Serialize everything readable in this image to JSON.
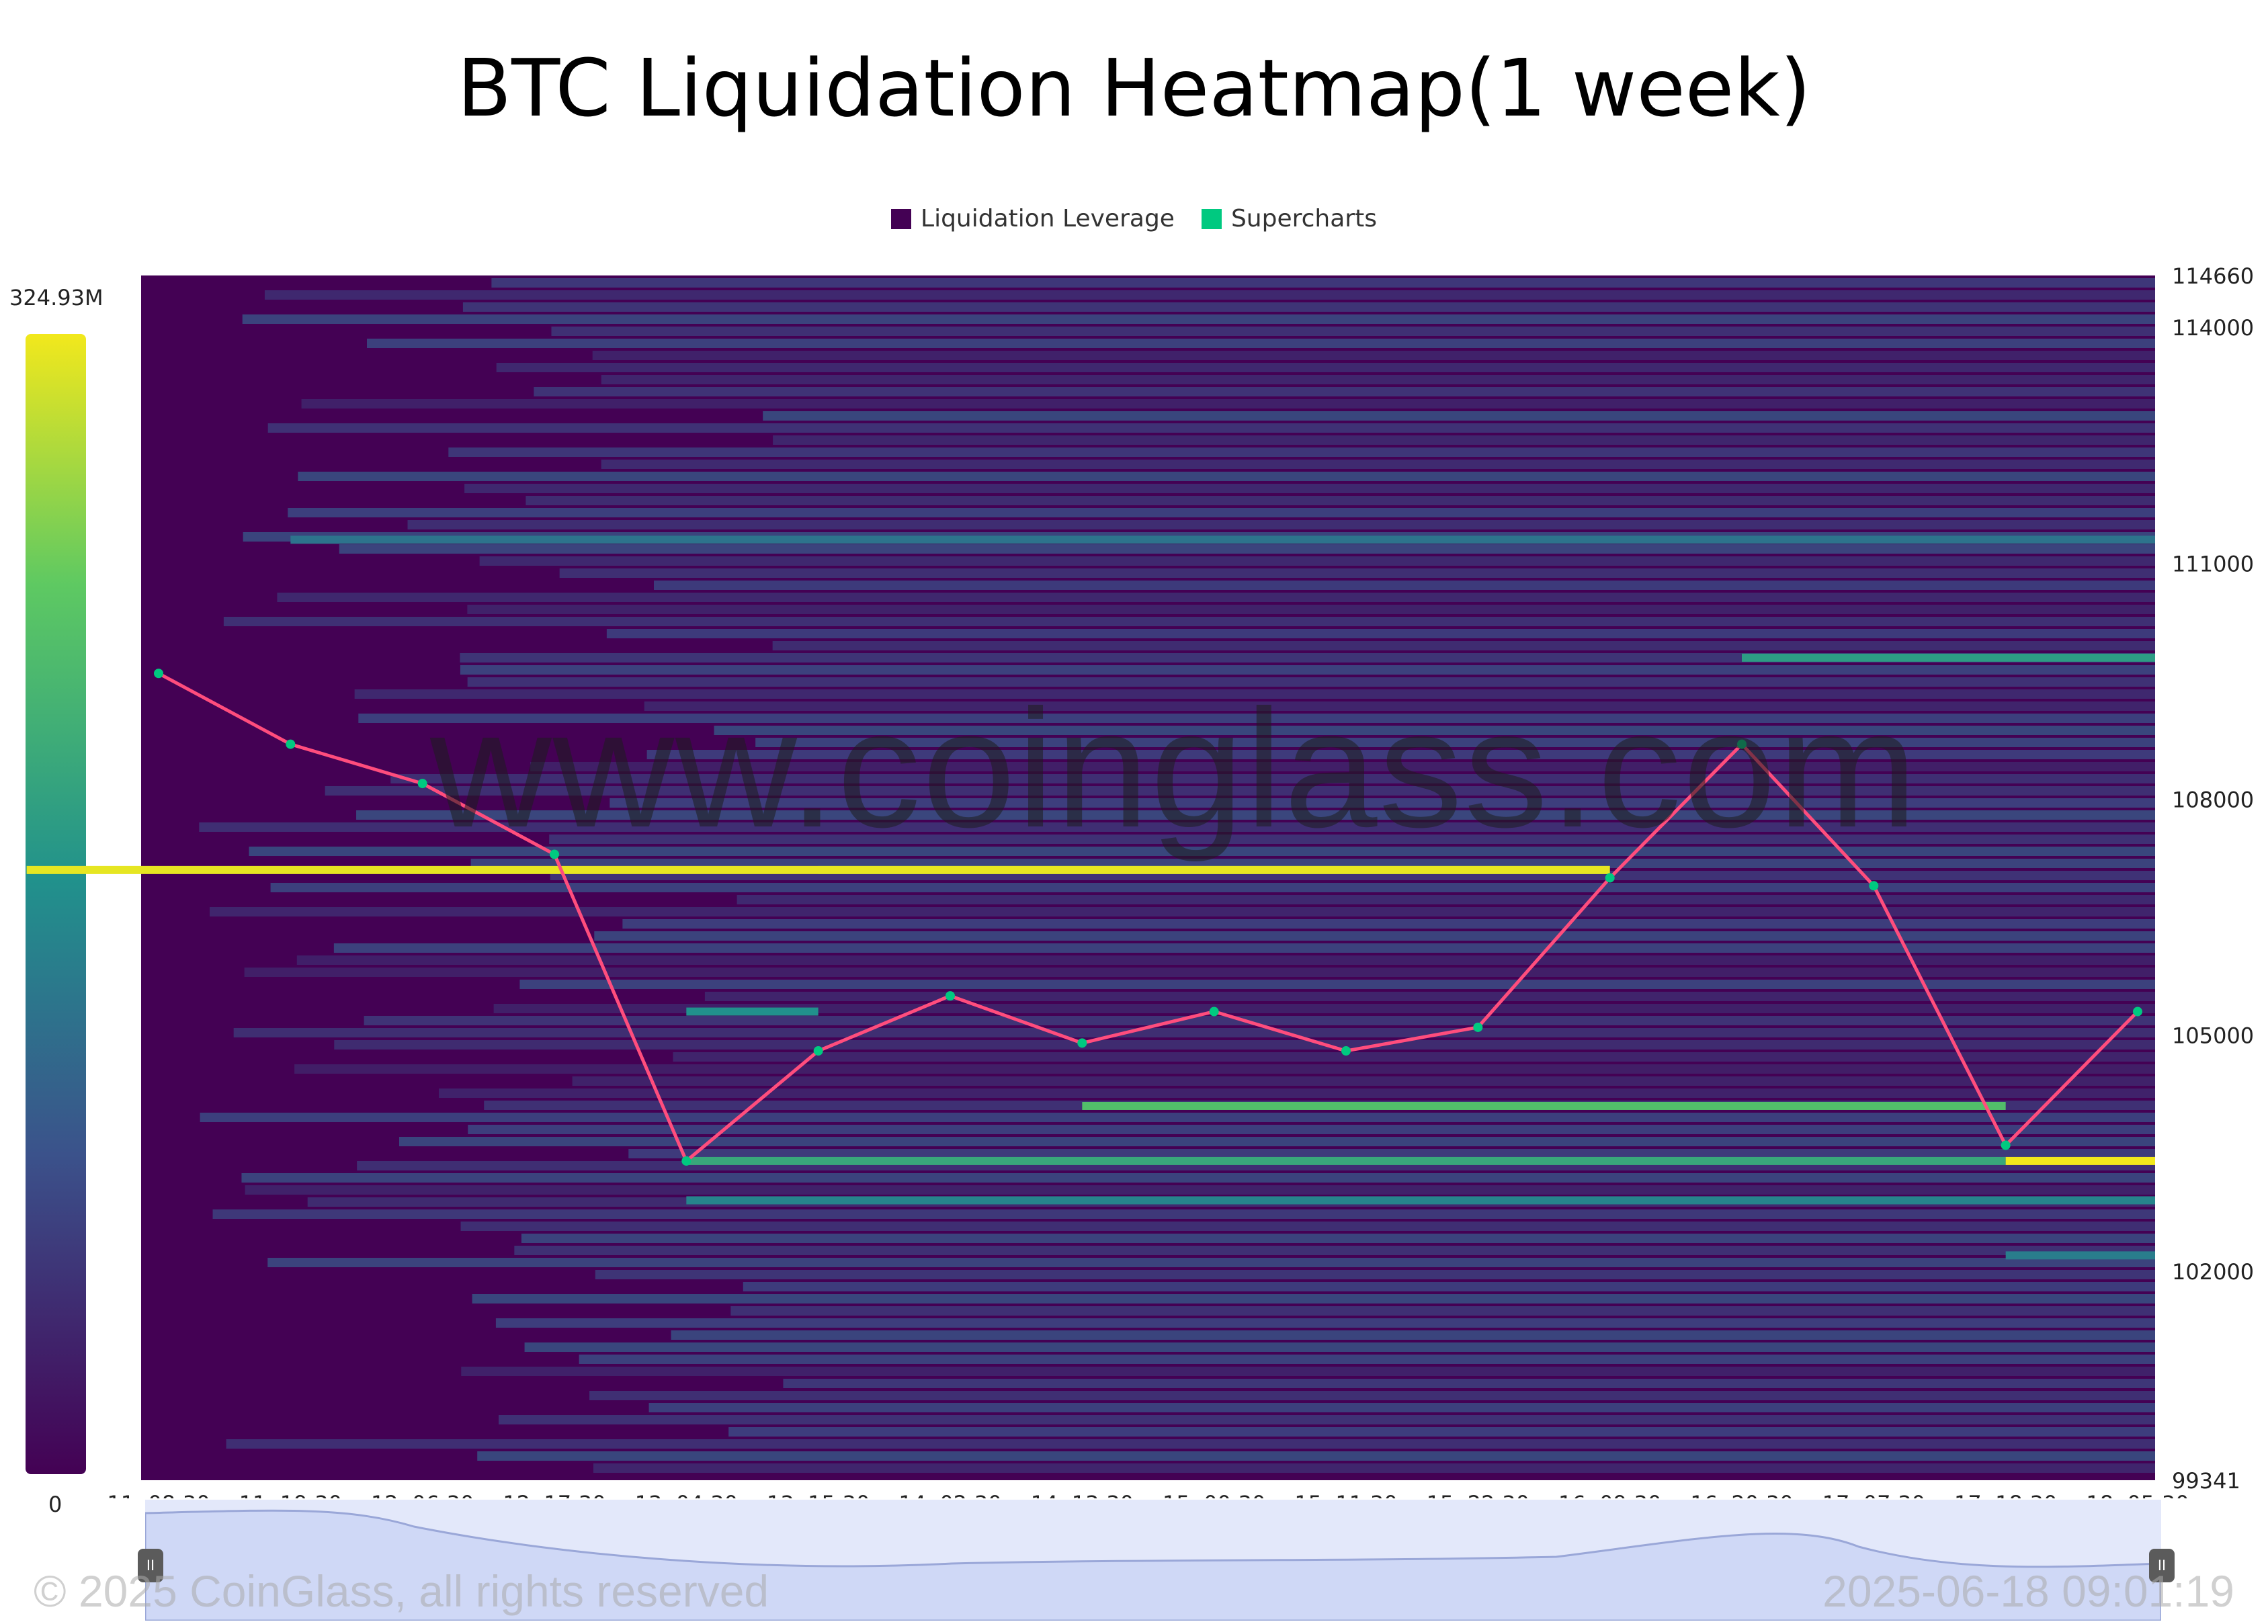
{
  "title": "BTC Liquidation Heatmap(1 week)",
  "legend": [
    {
      "label": "Liquidation Leverage",
      "color": "#440154"
    },
    {
      "label": "Supercharts",
      "color": "#00c980"
    }
  ],
  "color_scale": {
    "max_label": "324.93M",
    "min_label": "0"
  },
  "watermark": "www.coinglass.com",
  "copyright": "© 2025 CoinGlass, all rights reserved",
  "timestamp": "2025-06-18 09:01:19",
  "chart_data": {
    "type": "heatmap",
    "title": "BTC Liquidation Heatmap(1 week)",
    "x_ticks": [
      "11, 08:30",
      "11, 19:30",
      "12, 06:30",
      "12, 17:30",
      "13, 04:30",
      "13, 15:30",
      "14, 02:30",
      "14, 13:30",
      "15, 00:30",
      "15, 11:30",
      "15, 22:30",
      "16, 09:30",
      "16, 20:30",
      "17, 07:30",
      "17, 18:30",
      "18, 05:30"
    ],
    "y_ticks": [
      114660,
      114000,
      111000,
      108000,
      105000,
      102000,
      99341
    ],
    "ylim": [
      99341,
      114660
    ],
    "value_range": [
      0,
      324.93
    ],
    "value_unit": "M",
    "price_series": {
      "name": "Supercharts",
      "x": [
        "11, 08:30",
        "11, 19:30",
        "12, 06:30",
        "12, 17:30",
        "13, 04:30",
        "13, 15:30",
        "14, 02:30",
        "14, 13:30",
        "15, 00:30",
        "15, 11:30",
        "15, 22:30",
        "16, 09:30",
        "16, 20:30",
        "17, 07:30",
        "17, 18:30",
        "18, 05:30"
      ],
      "y": [
        109600,
        108700,
        108200,
        107300,
        103400,
        104800,
        105500,
        104900,
        105300,
        104800,
        105100,
        107000,
        108700,
        106900,
        103600,
        105300
      ]
    },
    "liquidation_bands": [
      {
        "price": 111300,
        "level": 0.38,
        "from": "11, 19:30",
        "to": "18, 05:30"
      },
      {
        "price": 109800,
        "level": 0.55,
        "from": "16, 20:30",
        "to": "18, 05:30"
      },
      {
        "price": 107100,
        "level": 0.62,
        "from": "13, 15:30",
        "to": "16, 09:30"
      },
      {
        "price": 107100,
        "level": 0.98,
        "from": "16, 00:30",
        "to": "16, 09:30"
      },
      {
        "price": 105300,
        "level": 0.5,
        "from": "13, 04:30",
        "to": "13, 15:30"
      },
      {
        "price": 104100,
        "level": 0.7,
        "from": "14, 13:30",
        "to": "17, 18:30"
      },
      {
        "price": 103400,
        "level": 0.6,
        "from": "13, 04:30",
        "to": "17, 18:30"
      },
      {
        "price": 103400,
        "level": 1.0,
        "from": "17, 18:30",
        "to": "18, 05:30"
      },
      {
        "price": 102900,
        "level": 0.45,
        "from": "13, 04:30",
        "to": "18, 05:30"
      },
      {
        "price": 102200,
        "level": 0.42,
        "from": "17, 18:30",
        "to": "18, 05:30"
      }
    ]
  }
}
